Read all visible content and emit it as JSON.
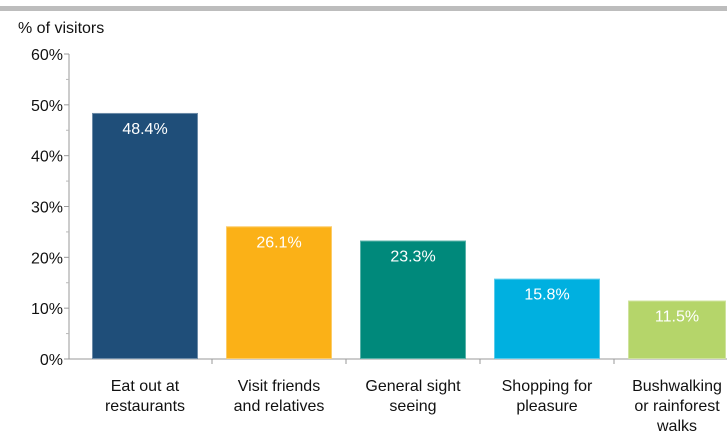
{
  "chart_data": {
    "type": "bar",
    "ylabel": "% of visitors",
    "xlabel": "",
    "title": "",
    "ylim": [
      0,
      60
    ],
    "yticks": [
      "0%",
      "10%",
      "20%",
      "30%",
      "40%",
      "50%",
      "60%"
    ],
    "grid": false,
    "categories": [
      [
        "Eat out at",
        "restaurants"
      ],
      [
        "Visit friends",
        "and relatives"
      ],
      [
        "General sight",
        "seeing"
      ],
      [
        "Shopping for",
        "pleasure"
      ],
      [
        "Bushwalking",
        "or rainforest",
        "walks"
      ]
    ],
    "values": [
      48.4,
      26.1,
      23.3,
      15.8,
      11.5
    ],
    "value_labels": [
      "48.4%",
      "26.1%",
      "23.3%",
      "15.8%",
      "11.5%"
    ],
    "colors": [
      "#1f4e79",
      "#fbb117",
      "#00897b",
      "#00b0e0",
      "#b5d56a"
    ]
  }
}
